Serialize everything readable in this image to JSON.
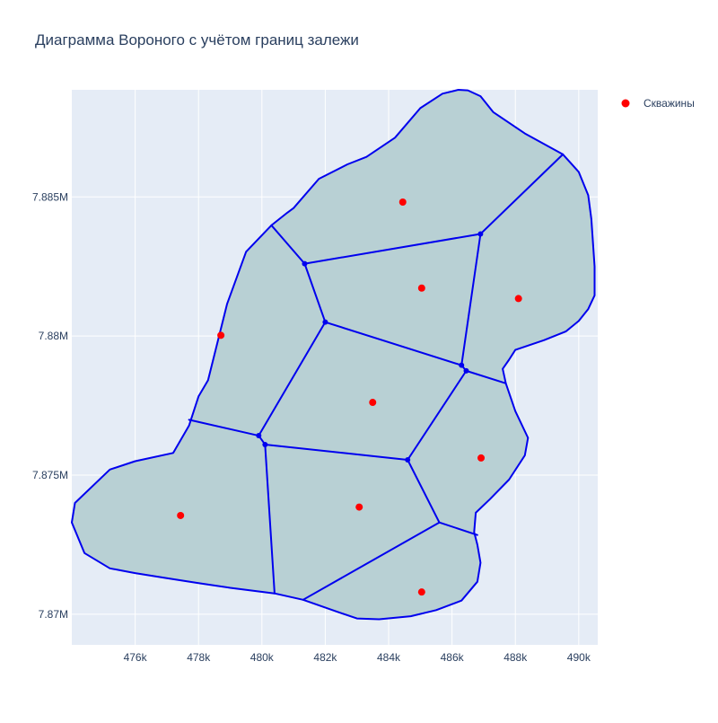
{
  "chart_data": {
    "type": "scatter",
    "title": "Диаграмма Вороного с учётом границ залежи",
    "xlabel": "",
    "ylabel": "",
    "xlim": [
      474000,
      490600
    ],
    "ylim": [
      7868900,
      7888850
    ],
    "x_ticks": [
      {
        "value": 476000,
        "label": "476k"
      },
      {
        "value": 478000,
        "label": "478k"
      },
      {
        "value": 480000,
        "label": "480k"
      },
      {
        "value": 482000,
        "label": "482k"
      },
      {
        "value": 484000,
        "label": "484k"
      },
      {
        "value": 486000,
        "label": "486k"
      },
      {
        "value": 488000,
        "label": "488k"
      },
      {
        "value": 490000,
        "label": "490k"
      }
    ],
    "y_ticks": [
      {
        "value": 7870000,
        "label": "7.87M"
      },
      {
        "value": 7875000,
        "label": "7.875M"
      },
      {
        "value": 7880000,
        "label": "7.88M"
      },
      {
        "value": 7885000,
        "label": "7.885M"
      }
    ],
    "grid": true,
    "legend_position": "top-right",
    "colors": {
      "plot_bg": "#e5ecf6",
      "grid": "#ffffff",
      "cell_fill": "#b8d0d4",
      "edge": "#0000ee",
      "well": "#ff0000",
      "text": "#2a3f5f"
    },
    "series": [
      {
        "name": "Скважины",
        "marker": "circle",
        "color": "#ff0000",
        "x": [
          484446,
          485043,
          488098,
          478706,
          483497,
          486918,
          477433,
          483071,
          485043
        ],
        "y": [
          7884815,
          7881724,
          7881347,
          7880026,
          7877615,
          7875618,
          7873550,
          7873852,
          7870799
        ]
      }
    ],
    "boundary": [
      [
        486200,
        7888850
      ],
      [
        485700,
        7888710
      ],
      [
        485000,
        7888190
      ],
      [
        484200,
        7887130
      ],
      [
        483300,
        7886440
      ],
      [
        482700,
        7886170
      ],
      [
        481800,
        7885650
      ],
      [
        481000,
        7884600
      ],
      [
        480800,
        7884430
      ],
      [
        480300,
        7883980
      ],
      [
        479500,
        7883030
      ],
      [
        478900,
        7881150
      ],
      [
        478300,
        7878410
      ],
      [
        478000,
        7877830
      ],
      [
        477700,
        7876780
      ],
      [
        477200,
        7875800
      ],
      [
        476000,
        7875500
      ],
      [
        475200,
        7875200
      ],
      [
        474100,
        7874000
      ],
      [
        474000,
        7873300
      ],
      [
        474400,
        7872200
      ],
      [
        475200,
        7871650
      ],
      [
        476000,
        7871480
      ],
      [
        477000,
        7871300
      ],
      [
        478000,
        7871120
      ],
      [
        479000,
        7870950
      ],
      [
        480400,
        7870750
      ],
      [
        481300,
        7870520
      ],
      [
        482300,
        7870120
      ],
      [
        483000,
        7869850
      ],
      [
        483700,
        7869820
      ],
      [
        484700,
        7869930
      ],
      [
        485500,
        7870150
      ],
      [
        486300,
        7870490
      ],
      [
        486800,
        7871170
      ],
      [
        486900,
        7871850
      ],
      [
        486800,
        7872500
      ],
      [
        486700,
        7872950
      ],
      [
        486750,
        7873650
      ],
      [
        487200,
        7874140
      ],
      [
        487800,
        7874840
      ],
      [
        488300,
        7875710
      ],
      [
        488400,
        7876340
      ],
      [
        488000,
        7877300
      ],
      [
        487700,
        7878300
      ],
      [
        487600,
        7878820
      ],
      [
        487800,
        7879150
      ],
      [
        488000,
        7879500
      ],
      [
        488900,
        7879850
      ],
      [
        489600,
        7880170
      ],
      [
        490000,
        7880540
      ],
      [
        490300,
        7880970
      ],
      [
        490500,
        7881460
      ],
      [
        490500,
        7882500
      ],
      [
        490400,
        7884200
      ],
      [
        490300,
        7885060
      ],
      [
        490000,
        7885900
      ],
      [
        489500,
        7886530
      ],
      [
        488300,
        7887280
      ],
      [
        487300,
        7888050
      ],
      [
        486900,
        7888620
      ],
      [
        486500,
        7888830
      ]
    ],
    "voronoi_edges": [
      [
        [
          480300,
          7883980
        ],
        [
          481350,
          7882600
        ]
      ],
      [
        [
          481350,
          7882600
        ],
        [
          486900,
          7883670
        ]
      ],
      [
        [
          486900,
          7883670
        ],
        [
          489500,
          7886530
        ]
      ],
      [
        [
          481350,
          7882600
        ],
        [
          482000,
          7880500
        ]
      ],
      [
        [
          486900,
          7883670
        ],
        [
          486300,
          7878950
        ]
      ],
      [
        [
          482000,
          7880500
        ],
        [
          486300,
          7878950
        ]
      ],
      [
        [
          486300,
          7878950
        ],
        [
          486450,
          7878750
        ]
      ],
      [
        [
          486450,
          7878750
        ],
        [
          487700,
          7878300
        ]
      ],
      [
        [
          482000,
          7880500
        ],
        [
          479900,
          7876420
        ]
      ],
      [
        [
          477700,
          7876990
        ],
        [
          479900,
          7876420
        ]
      ],
      [
        [
          479900,
          7876420
        ],
        [
          480100,
          7876100
        ]
      ],
      [
        [
          480100,
          7876100
        ],
        [
          484600,
          7875550
        ]
      ],
      [
        [
          484600,
          7875550
        ],
        [
          486450,
          7878750
        ]
      ],
      [
        [
          480100,
          7876100
        ],
        [
          480400,
          7870750
        ]
      ],
      [
        [
          484600,
          7875550
        ],
        [
          485600,
          7873300
        ]
      ],
      [
        [
          485600,
          7873300
        ],
        [
          486800,
          7872850
        ]
      ],
      [
        [
          485600,
          7873300
        ],
        [
          481300,
          7870520
        ]
      ]
    ],
    "voronoi_vertices": [
      [
        481350,
        7882600
      ],
      [
        486900,
        7883670
      ],
      [
        482000,
        7880500
      ],
      [
        486300,
        7878950
      ],
      [
        486450,
        7878750
      ],
      [
        479900,
        7876420
      ],
      [
        480100,
        7876100
      ],
      [
        484600,
        7875550
      ]
    ]
  }
}
